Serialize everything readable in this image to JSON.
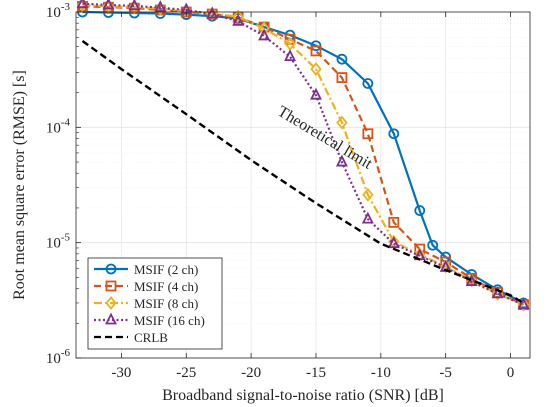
{
  "chart_data": {
    "type": "line",
    "xlabel": "Broadband signal-to-noise ratio (SNR) [dB]",
    "ylabel": "Root mean square error (RMSE) [s]",
    "xlim": [
      -33.5,
      1.5
    ],
    "ylim": [
      1e-06,
      0.001
    ],
    "yscale": "log",
    "grid": true,
    "legend_position": "bottom-left",
    "xticks": [
      -30,
      -25,
      -20,
      -15,
      -10,
      -5,
      0
    ],
    "xtick_labels": [
      "-30",
      "-25",
      "-20",
      "-15",
      "-10",
      "-5",
      "0"
    ],
    "yticks": [
      {
        "value": 1e-06,
        "base": "10",
        "exp": "-6"
      },
      {
        "value": 1e-05,
        "base": "10",
        "exp": "-5"
      },
      {
        "value": 0.0001,
        "base": "10",
        "exp": "-4"
      },
      {
        "value": 0.001,
        "base": "10",
        "exp": "-3"
      }
    ],
    "annotation": {
      "text": "Theoretical limit",
      "x": -14.5,
      "y": 7.5e-05,
      "rotation_deg": 31
    },
    "series": [
      {
        "name": "MSIF (2 ch)",
        "color": "#0072BD",
        "line": "solid",
        "marker": "circle",
        "x": [
          -33,
          -31,
          -29,
          -27,
          -25,
          -23,
          -21,
          -19,
          -17,
          -15,
          -13,
          -11,
          -9,
          -7,
          -6,
          -5,
          -3,
          -1,
          1
        ],
        "y": [
          0.001,
          0.00099,
          0.00098,
          0.00097,
          0.00095,
          0.00092,
          0.00088,
          0.00074,
          0.00063,
          0.00051,
          0.00039,
          0.00024,
          8.8e-05,
          1.9e-05,
          9.5e-06,
          7.5e-06,
          5.3e-06,
          3.9e-06,
          3e-06
        ]
      },
      {
        "name": "MSIF (4 ch)",
        "color": "#D95319",
        "line": "dashed",
        "marker": "square",
        "x": [
          -33,
          -31,
          -29,
          -27,
          -25,
          -23,
          -21,
          -19,
          -17,
          -15,
          -13,
          -11,
          -9,
          -7,
          -5,
          -3,
          -1,
          1
        ],
        "y": [
          0.00112,
          0.0011,
          0.00108,
          0.00104,
          0.001,
          0.00096,
          0.0009,
          0.00074,
          0.00058,
          0.00046,
          0.00027,
          8.8e-05,
          1.5e-05,
          8.8e-06,
          6.8e-06,
          4.9e-06,
          3.7e-06,
          2.9e-06
        ]
      },
      {
        "name": "MSIF (8 ch)",
        "color": "#EDB120",
        "line": "dashdot",
        "marker": "diamond",
        "x": [
          -33,
          -31,
          -29,
          -27,
          -25,
          -23,
          -21,
          -19,
          -17,
          -15,
          -13,
          -11,
          -9,
          -7,
          -5,
          -3,
          -1,
          1
        ],
        "y": [
          0.00115,
          0.00112,
          0.0011,
          0.00107,
          0.00102,
          0.00097,
          0.00091,
          0.00072,
          0.00053,
          0.00032,
          0.00011,
          2.6e-05,
          1.02e-05,
          7.9e-06,
          6.2e-06,
          4.7e-06,
          3.6e-06,
          2.9e-06
        ]
      },
      {
        "name": "MSIF (16 ch)",
        "color": "#7E2F8E",
        "line": "dotted",
        "marker": "triangle",
        "x": [
          -33,
          -31,
          -29,
          -27,
          -25,
          -23,
          -21,
          -19,
          -17,
          -15,
          -13,
          -11,
          -9,
          -7,
          -5,
          -3,
          -1,
          1
        ],
        "y": [
          0.00118,
          0.00115,
          0.00113,
          0.00109,
          0.00104,
          0.00096,
          0.00083,
          0.00062,
          0.00041,
          0.00019,
          5e-05,
          1.6e-05,
          9.8e-06,
          7.7e-06,
          6.1e-06,
          4.6e-06,
          3.6e-06,
          2.9e-06
        ]
      },
      {
        "name": "CRLB",
        "color": "#000000",
        "line": "dashed",
        "marker": "none",
        "x": [
          -33,
          -30,
          -25,
          -20,
          -15,
          -10,
          -5,
          0,
          1
        ],
        "y": [
          0.00056,
          0.00032,
          0.00013,
          5.2e-05,
          2.2e-05,
          9.8e-06,
          5.8e-06,
          3.5e-06,
          3e-06
        ]
      }
    ]
  }
}
